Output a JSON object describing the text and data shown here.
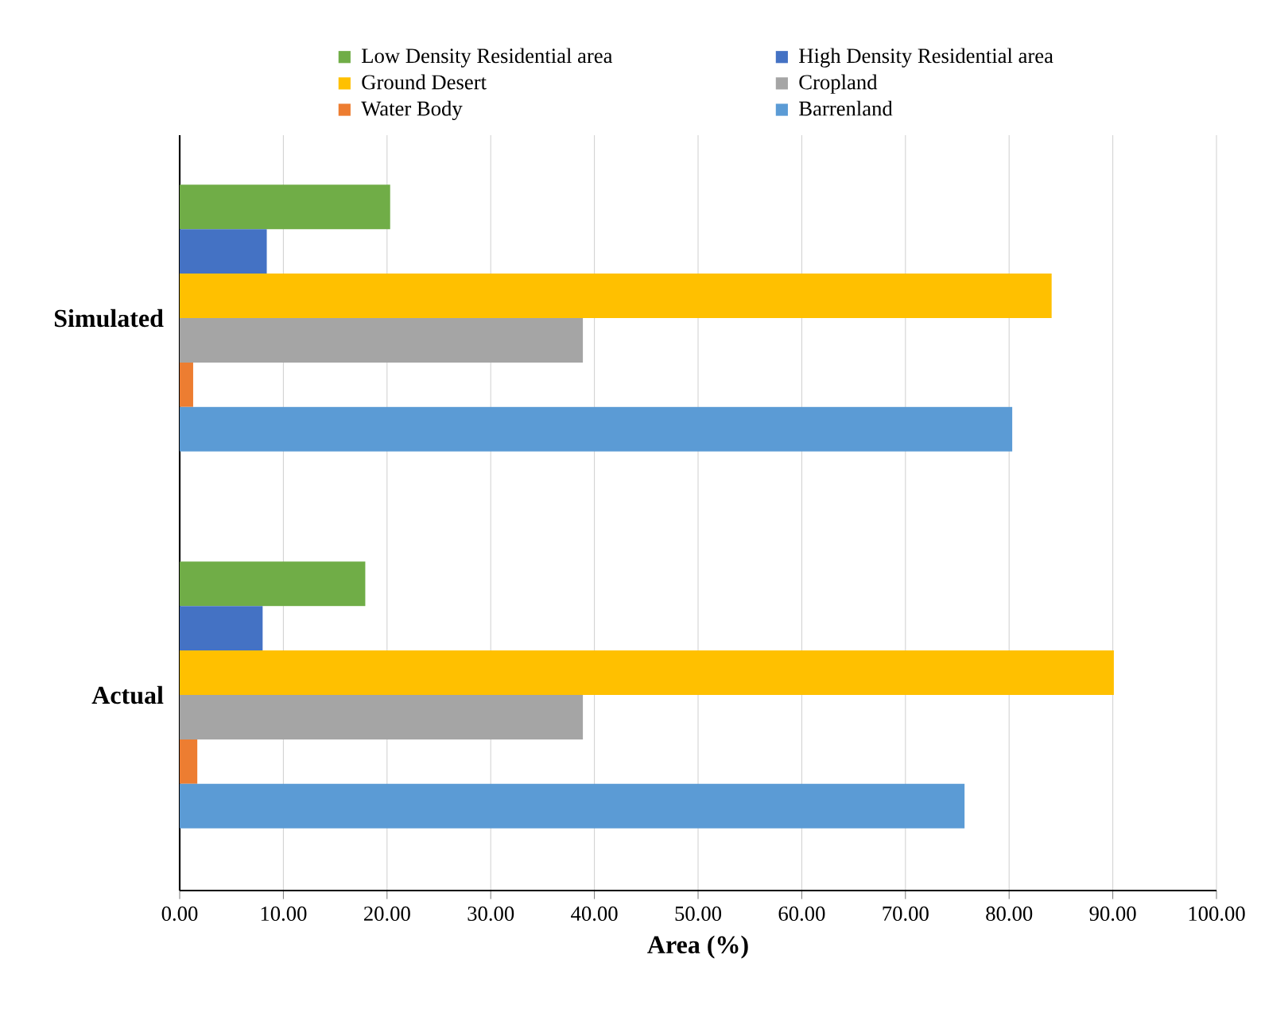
{
  "chart_data": {
    "type": "bar",
    "orientation": "horizontal",
    "xlabel": "Area (%)",
    "categories": [
      "Simulated",
      "Actual"
    ],
    "series": [
      {
        "name": "Low Density Residential area",
        "color": "#70ad47",
        "values": [
          20.3,
          17.9
        ]
      },
      {
        "name": "High Density Residential area",
        "color": "#4472c4",
        "values": [
          8.4,
          8.0
        ]
      },
      {
        "name": "Ground Desert",
        "color": "#ffc000",
        "values": [
          84.1,
          90.1
        ]
      },
      {
        "name": "Cropland",
        "color": "#a5a5a5",
        "values": [
          38.9,
          38.9
        ]
      },
      {
        "name": "Water Body",
        "color": "#ed7d31",
        "values": [
          1.3,
          1.7
        ]
      },
      {
        "name": "Barrenland",
        "color": "#5b9bd5",
        "values": [
          80.3,
          75.7
        ]
      }
    ],
    "xlim": [
      0,
      100
    ],
    "xticks": [
      {
        "value": 0,
        "label": "0.00"
      },
      {
        "value": 10,
        "label": "10.00"
      },
      {
        "value": 20,
        "label": "20.00"
      },
      {
        "value": 30,
        "label": "30.00"
      },
      {
        "value": 40,
        "label": "40.00"
      },
      {
        "value": 50,
        "label": "50.00"
      },
      {
        "value": 60,
        "label": "60.00"
      },
      {
        "value": 70,
        "label": "70.00"
      },
      {
        "value": 80,
        "label": "80.00"
      },
      {
        "value": 90,
        "label": "90.00"
      },
      {
        "value": 100,
        "label": "100.00"
      }
    ],
    "grid": "x",
    "legend": "top"
  }
}
